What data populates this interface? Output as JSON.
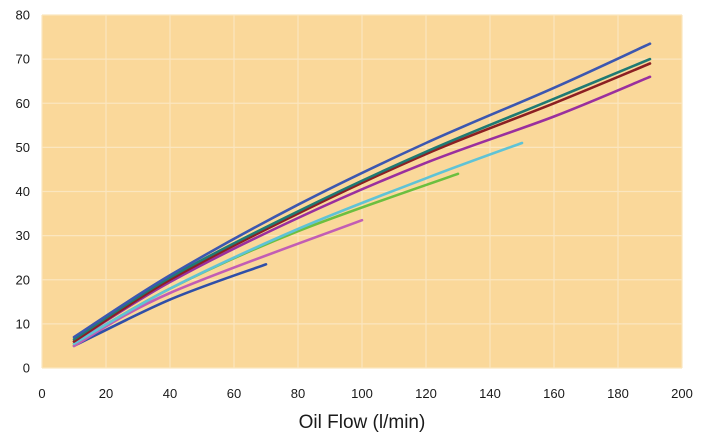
{
  "chart_data": {
    "type": "line",
    "title": "",
    "xlabel": "Oil Flow (l/min)",
    "ylabel": "",
    "xlim": [
      0,
      200
    ],
    "ylim": [
      0,
      80
    ],
    "x_ticks": [
      0,
      20,
      40,
      60,
      80,
      100,
      120,
      140,
      160,
      180,
      200
    ],
    "y_ticks": [
      0,
      10,
      20,
      30,
      40,
      50,
      60,
      70,
      80
    ],
    "grid": true,
    "legend": "none",
    "plot_background": "#fad89a",
    "gridline_color": "#fbe6bf",
    "series": [
      {
        "color": "#2f4fa8",
        "x": [
          10,
          40,
          70
        ],
        "y": [
          5,
          15.5,
          23.5
        ]
      },
      {
        "color": "#c25db4",
        "x": [
          10,
          40,
          100
        ],
        "y": [
          5,
          17,
          33.5
        ]
      },
      {
        "color": "#6cbf3f",
        "x": [
          10,
          40,
          80,
          130
        ],
        "y": [
          5.5,
          18,
          31,
          44
        ]
      },
      {
        "color": "#5fc3d6",
        "x": [
          10,
          40,
          80,
          120,
          150
        ],
        "y": [
          5.5,
          18,
          31.5,
          43,
          51
        ]
      },
      {
        "color": "#9a2f9e",
        "x": [
          10,
          40,
          80,
          120,
          160,
          190
        ],
        "y": [
          6,
          19.5,
          34,
          46.5,
          57,
          66
        ]
      },
      {
        "color": "#8c1f22",
        "x": [
          10,
          40,
          80,
          120,
          160,
          190
        ],
        "y": [
          6,
          20,
          35,
          48.5,
          60,
          69
        ]
      },
      {
        "color": "#1f7a73",
        "x": [
          10,
          40,
          80,
          120,
          160,
          190
        ],
        "y": [
          6.5,
          20.5,
          35.5,
          49,
          61,
          70
        ]
      },
      {
        "color": "#3c57b0",
        "x": [
          10,
          40,
          80,
          120,
          160,
          190
        ],
        "y": [
          7,
          21,
          37,
          51,
          63.5,
          73.5
        ]
      }
    ]
  }
}
